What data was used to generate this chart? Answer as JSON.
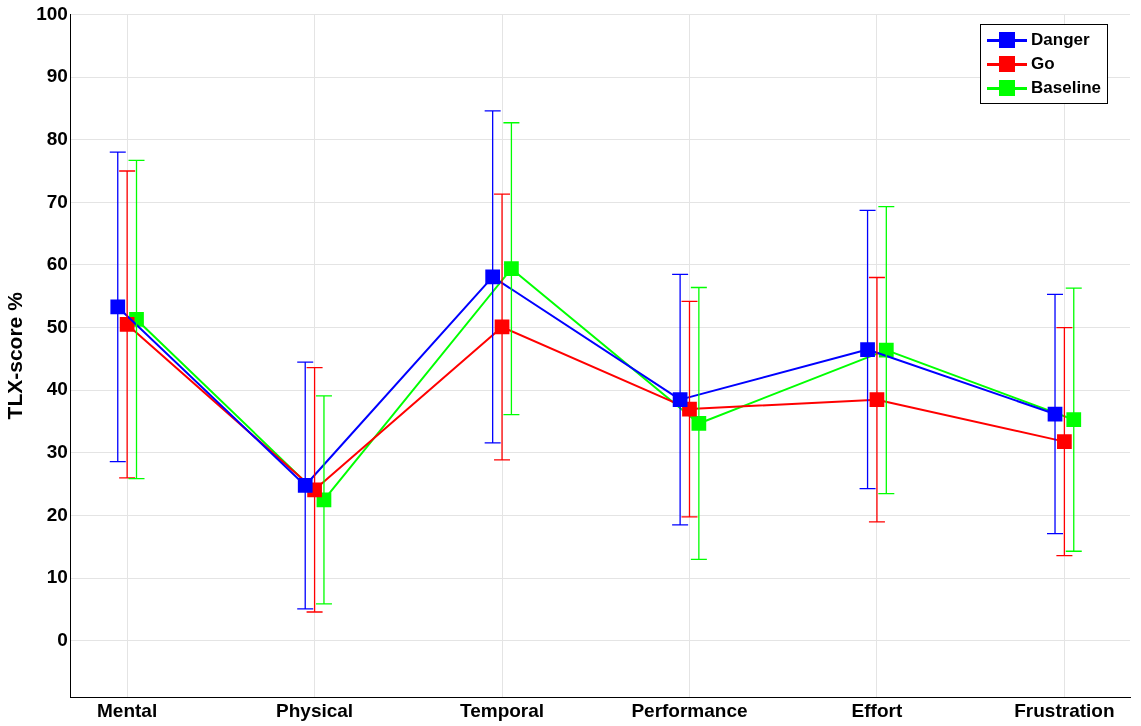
{
  "chart_data": {
    "type": "line",
    "ylabel": "TLX-score %",
    "categories": [
      "Mental",
      "Physical",
      "Temporal",
      "Performance",
      "Effort",
      "Frustration"
    ],
    "ylim": [
      -9,
      100
    ],
    "yticks": [
      0,
      10,
      20,
      30,
      40,
      50,
      60,
      70,
      80,
      90,
      100
    ],
    "grid": true,
    "legend": "top right",
    "marker": "square",
    "line_style": "solid",
    "series": [
      {
        "name": "Danger",
        "color": "#0000ff",
        "values": [
          53.3,
          24.8,
          58.1,
          38.5,
          46.5,
          36.2
        ],
        "errors": [
          24.7,
          19.7,
          26.5,
          20,
          22.2,
          19.1
        ]
      },
      {
        "name": "Go",
        "color": "#ff0000",
        "values": [
          50.5,
          24.1,
          50.1,
          37,
          38.5,
          31.8
        ],
        "errors": [
          24.5,
          19.5,
          21.2,
          17.2,
          19.5,
          18.2
        ]
      },
      {
        "name": "Baseline",
        "color": "#00ff00",
        "values": [
          51.3,
          22.5,
          59.4,
          34.7,
          46.4,
          35.3
        ],
        "errors": [
          25.4,
          16.6,
          23.3,
          21.7,
          22.9,
          21
        ]
      }
    ]
  }
}
